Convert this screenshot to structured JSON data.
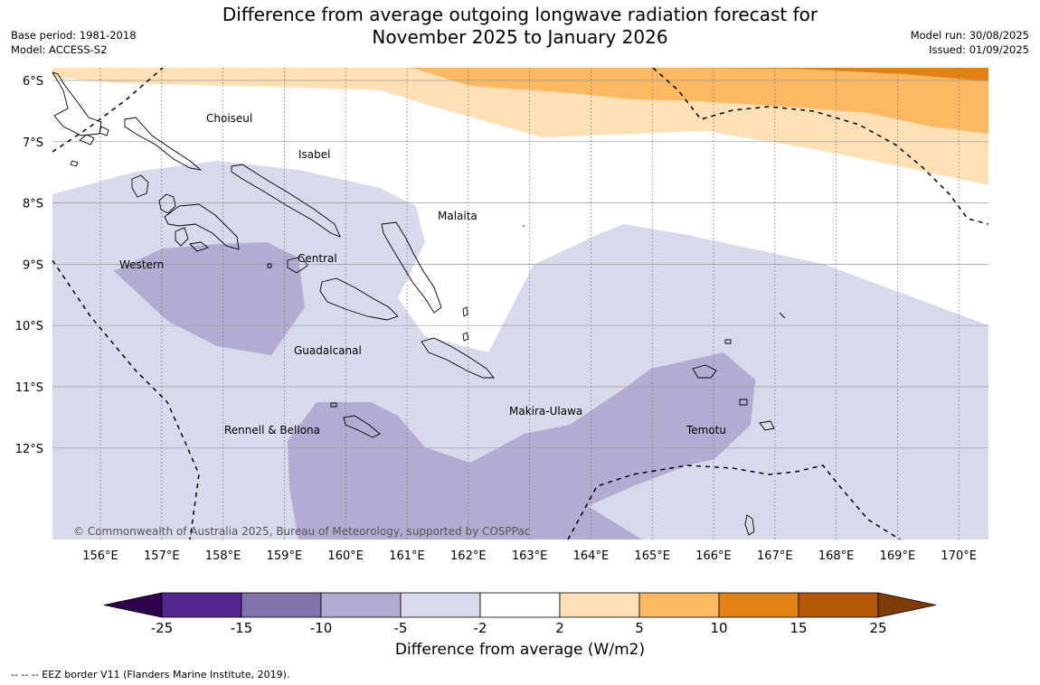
{
  "title_line1": "Difference from average outgoing longwave radiation forecast for",
  "title_line2": "November 2025 to January 2026",
  "base_period": "Base period: 1981-2018",
  "model": "Model: ACCESS-S2",
  "model_run": "Model run: 30/08/2025",
  "issued": "Issued: 01/09/2025",
  "copyright": "© Commonwealth of Australia 2025, Bureau of Meteorology, supported by COSPPac",
  "lon_labels": [
    "156°E",
    "157°E",
    "158°E",
    "159°E",
    "160°E",
    "161°E",
    "162°E",
    "163°E",
    "164°E",
    "165°E",
    "166°E",
    "167°E",
    "168°E",
    "169°E",
    "170°E"
  ],
  "lat_labels": [
    "6°S",
    "7°S",
    "8°S",
    "9°S",
    "10°S",
    "11°S",
    "12°S"
  ],
  "provinces": [
    "Choiseul",
    "Isabel",
    "Malaita",
    "Western",
    "Central",
    "Guadalcanal",
    "Makira-Ulawa",
    "Rennell & Bellona",
    "Temotu"
  ],
  "colorbar": {
    "title": "Difference from average (W/m2)",
    "ticks": [
      "-25",
      "-15",
      "-10",
      "-5",
      "-2",
      "2",
      "5",
      "10",
      "15",
      "25"
    ],
    "colors": [
      "#54278f",
      "#8073ac",
      "#b2abd2",
      "#d8daeb",
      "#ffffff",
      "#fee0b6",
      "#fdb863",
      "#e08214",
      "#b35806"
    ],
    "under_color": "#2d004b",
    "over_color": "#7f3b08"
  },
  "footnote": "--  --  -- EEZ border V11 (Flanders Marine Institute, 2019)."
}
